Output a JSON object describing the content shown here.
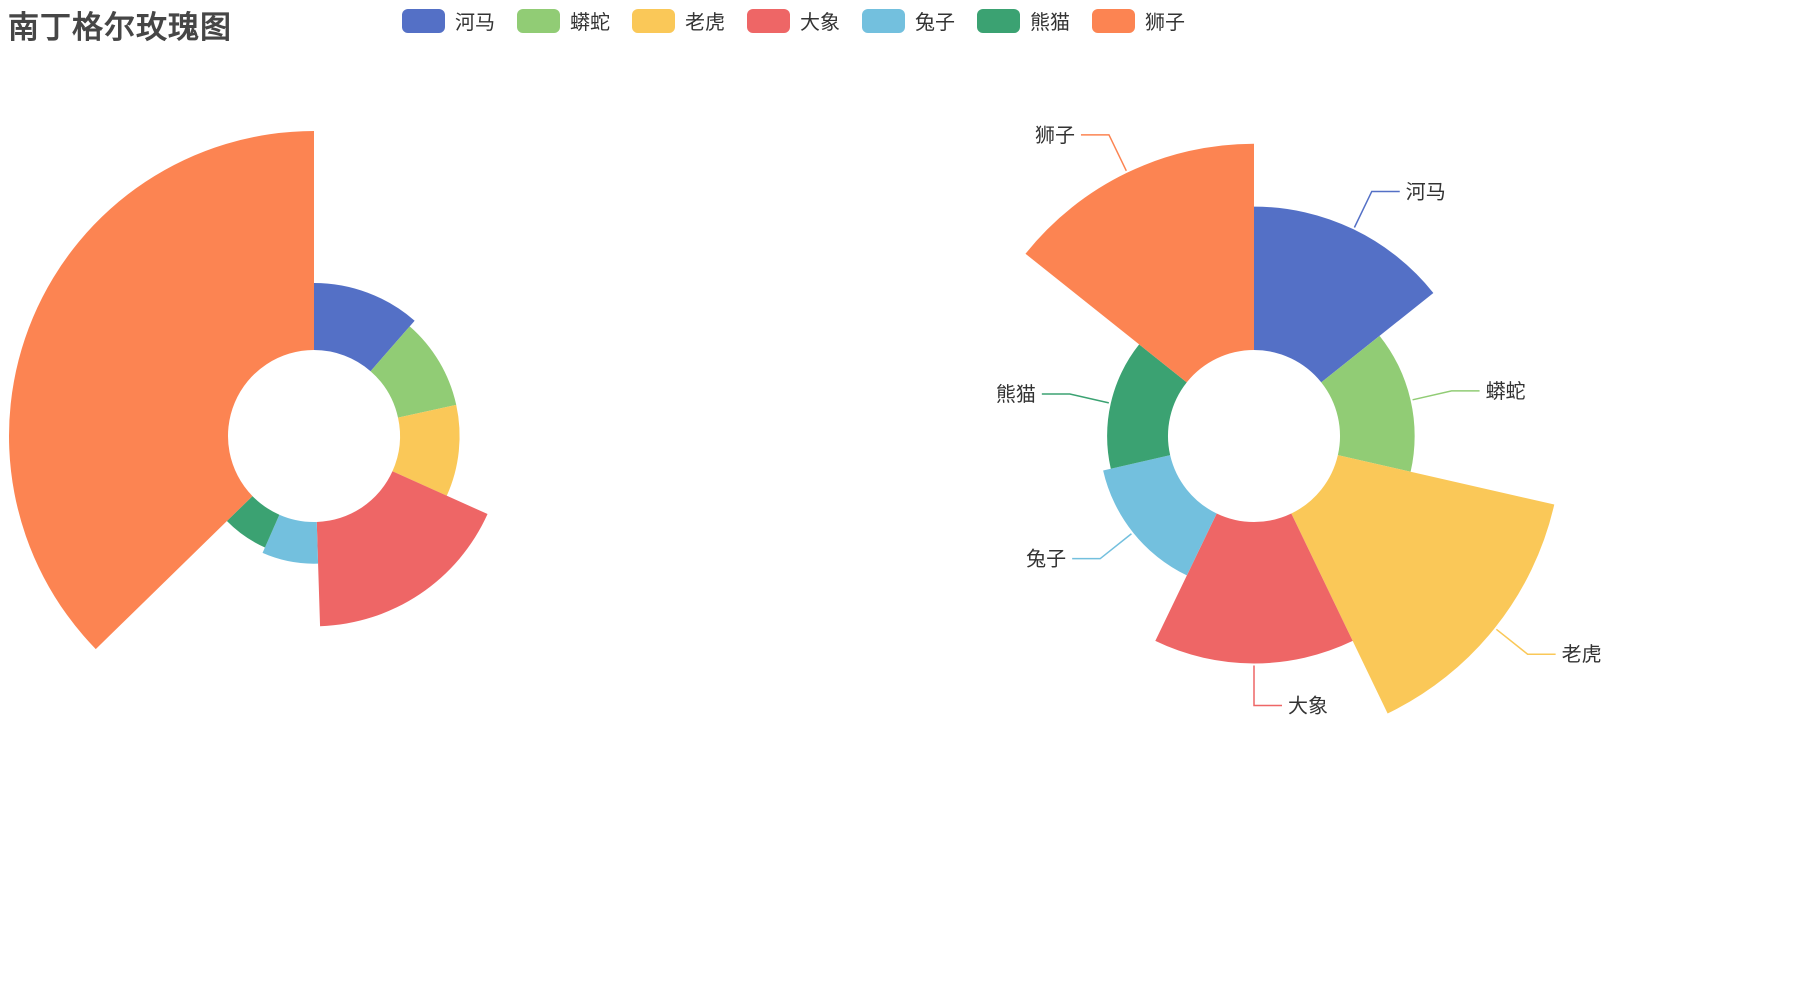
{
  "chart_data": [
    {
      "type": "nightingale-rose-radius",
      "title": "南丁格尔玫瑰图",
      "categories": [
        "河马",
        "蟒蛇",
        "老虎",
        "大象",
        "兔子",
        "熊猫",
        "狮子"
      ],
      "values": [
        45,
        40,
        40,
        70,
        28,
        24,
        147
      ],
      "colors": [
        "#5470c6",
        "#91cc75",
        "#fac858",
        "#ee6666",
        "#73c0de",
        "#3ba272",
        "#fc8452"
      ]
    },
    {
      "type": "nightingale-rose-area",
      "categories": [
        "河马",
        "蟒蛇",
        "老虎",
        "大象",
        "兔子",
        "熊猫",
        "狮子"
      ],
      "values": [
        73,
        38,
        113,
        72,
        35,
        31,
        105
      ],
      "labels": [
        "河马",
        "蟒蛇",
        "老虎",
        "大象",
        "兔子",
        "熊猫",
        "狮子"
      ],
      "colors": [
        "#5470c6",
        "#91cc75",
        "#fac858",
        "#ee6666",
        "#73c0de",
        "#3ba272",
        "#fc8452"
      ]
    }
  ],
  "legend": [
    "河马",
    "蟒蛇",
    "老虎",
    "大象",
    "兔子",
    "熊猫",
    "狮子"
  ]
}
